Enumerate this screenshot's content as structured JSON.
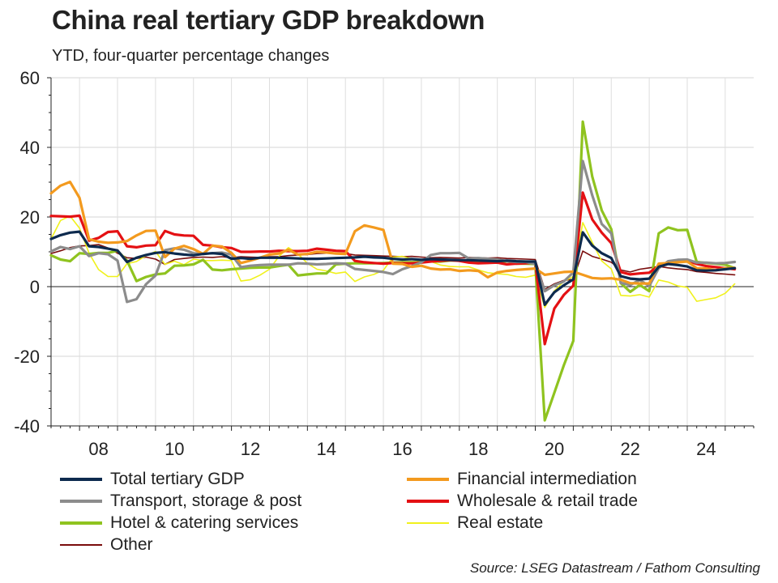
{
  "title": "China real tertiary GDP breakdown",
  "subtitle": "YTD, four-quarter percentage changes",
  "source": "Source: LSEG Datastream / Fathom Consulting",
  "chart_data": {
    "type": "line",
    "title": "China real tertiary GDP breakdown",
    "subtitle": "YTD, four-quarter percentage changes",
    "xlabel": "",
    "ylabel": "",
    "ylim": [
      -40,
      60
    ],
    "yticks": [
      -40,
      -20,
      0,
      20,
      40,
      60
    ],
    "ytick_labels": [
      "-40",
      "-20",
      "0",
      "20",
      "40",
      "60"
    ],
    "xlim": [
      2007.25,
      2025.75
    ],
    "xticks": [
      2008,
      2010,
      2012,
      2014,
      2016,
      2018,
      2020,
      2022,
      2024
    ],
    "xtick_labels": [
      "08",
      "10",
      "12",
      "14",
      "16",
      "18",
      "20",
      "22",
      "24"
    ],
    "grid": true,
    "legend_position": "bottom",
    "x": [
      2007.25,
      2007.5,
      2007.75,
      2008,
      2008.25,
      2008.5,
      2008.75,
      2009,
      2009.25,
      2009.5,
      2009.75,
      2010,
      2010.25,
      2010.5,
      2010.75,
      2011,
      2011.25,
      2011.5,
      2011.75,
      2012,
      2012.25,
      2012.5,
      2012.75,
      2013,
      2013.25,
      2013.5,
      2013.75,
      2014,
      2014.25,
      2014.5,
      2014.75,
      2015,
      2015.25,
      2015.5,
      2015.75,
      2016,
      2016.25,
      2016.5,
      2016.75,
      2017,
      2017.25,
      2017.5,
      2017.75,
      2018,
      2018.25,
      2018.5,
      2018.75,
      2019,
      2019.25,
      2019.5,
      2019.75,
      2020,
      2020.25,
      2020.5,
      2020.75,
      2021,
      2021.25,
      2021.5,
      2021.75,
      2022,
      2022.25,
      2022.5,
      2022.75,
      2023,
      2023.25,
      2023.5,
      2023.75,
      2024,
      2024.25,
      2024.5,
      2024.75,
      2025,
      2025.25
    ],
    "series": [
      {
        "name": "Total tertiary GDP",
        "color": "#0d2a4e",
        "width": 3.2,
        "values": [
          13.7,
          14.8,
          15.5,
          15.8,
          11.6,
          11.4,
          10.9,
          10.4,
          7.1,
          8.3,
          9.1,
          9.7,
          9.9,
          9.5,
          9.2,
          9.0,
          9.4,
          9.6,
          9.4,
          8.0,
          8.2,
          8.0,
          8.3,
          8.3,
          8.3,
          8.2,
          8.1,
          8.0,
          8.0,
          8.1,
          8.2,
          8.3,
          8.4,
          8.6,
          8.4,
          8.3,
          8.0,
          7.8,
          7.9,
          7.7,
          7.9,
          7.8,
          7.7,
          7.6,
          7.6,
          7.5,
          7.4,
          7.3,
          7.5,
          7.3,
          7.2,
          7.2,
          -5.2,
          -1.6,
          0.4,
          2.1,
          15.6,
          11.8,
          9.6,
          8.2,
          3.0,
          2.3,
          2.1,
          2.3,
          5.7,
          6.5,
          6.2,
          5.8,
          4.7,
          4.6,
          4.7,
          5.0,
          5.3
        ]
      },
      {
        "name": "Financial intermediation",
        "color": "#f39a1e",
        "width": 3.2,
        "values": [
          26.8,
          29.0,
          30.1,
          25.5,
          13.6,
          12.9,
          12.6,
          12.7,
          13.1,
          14.7,
          16.0,
          16.1,
          8.5,
          10.9,
          11.7,
          10.8,
          9.4,
          11.8,
          11.5,
          9.7,
          6.8,
          7.5,
          8.3,
          9.2,
          9.5,
          10.6,
          9.2,
          9.4,
          10.0,
          9.8,
          9.5,
          9.4,
          15.9,
          17.6,
          17.0,
          16.3,
          6.6,
          6.5,
          5.7,
          6.0,
          5.2,
          4.9,
          5.0,
          4.5,
          4.7,
          4.5,
          2.7,
          4.1,
          4.5,
          4.8,
          5.0,
          5.2,
          3.4,
          3.8,
          4.2,
          4.3,
          3.4,
          2.5,
          2.3,
          2.4,
          2.0,
          1.0,
          0.9,
          0.9,
          6.6,
          6.8,
          7.0,
          7.2,
          5.3,
          5.2,
          4.7,
          5.3,
          5.4
        ]
      },
      {
        "name": "Transport, storage & post",
        "color": "#8c8c8c",
        "width": 3.2,
        "values": [
          10.1,
          11.4,
          10.8,
          11.6,
          8.8,
          9.6,
          9.3,
          7.5,
          -4.4,
          -3.6,
          0.7,
          3.2,
          10.5,
          11.0,
          10.6,
          9.6,
          9.4,
          9.6,
          9.8,
          9.2,
          5.6,
          6.0,
          6.2,
          6.3,
          6.3,
          6.3,
          6.7,
          6.6,
          6.4,
          6.5,
          6.7,
          6.6,
          5.1,
          4.8,
          4.5,
          4.2,
          3.6,
          5.0,
          5.9,
          7.0,
          9.1,
          9.6,
          9.6,
          9.7,
          8.1,
          8.2,
          8.0,
          7.8,
          7.3,
          7.1,
          7.1,
          6.5,
          -1.3,
          0.4,
          1.5,
          4.1,
          36.1,
          26.2,
          18.0,
          15.3,
          1.1,
          0.5,
          1.9,
          0.2,
          5.3,
          7.3,
          7.7,
          7.8,
          6.9,
          6.9,
          6.7,
          6.8,
          7.1
        ]
      },
      {
        "name": "Wholesale & retail trade",
        "color": "#e41013",
        "width": 3.2,
        "values": [
          20.3,
          20.2,
          20.1,
          20.4,
          13.2,
          14.0,
          15.7,
          15.9,
          11.6,
          11.3,
          11.8,
          11.9,
          16.0,
          15.0,
          14.7,
          14.6,
          12.0,
          11.8,
          11.3,
          11.1,
          10.0,
          10.0,
          10.1,
          10.1,
          10.3,
          10.2,
          10.2,
          10.3,
          10.9,
          10.6,
          10.3,
          10.2,
          7.4,
          7.0,
          6.8,
          6.6,
          6.8,
          6.7,
          6.7,
          6.9,
          7.2,
          7.4,
          7.6,
          7.4,
          6.9,
          6.7,
          6.8,
          6.9,
          6.4,
          6.6,
          6.7,
          6.9,
          -16.5,
          -6.3,
          -2.4,
          0.3,
          27.0,
          19.3,
          15.5,
          12.5,
          4.2,
          3.5,
          3.8,
          4.0,
          6.0,
          6.8,
          7.5,
          7.5,
          6.5,
          5.9,
          5.6,
          5.3,
          5.0
        ]
      },
      {
        "name": "Hotel & catering services",
        "color": "#8fc31f",
        "width": 3.2,
        "values": [
          9.0,
          7.8,
          7.3,
          9.6,
          9.4,
          9.7,
          9.7,
          10.3,
          7.5,
          1.6,
          2.8,
          3.5,
          3.8,
          6.0,
          6.1,
          6.4,
          7.7,
          4.9,
          4.7,
          5.0,
          5.2,
          5.4,
          5.5,
          5.5,
          5.9,
          6.3,
          3.2,
          3.5,
          3.8,
          3.8,
          6.4,
          6.6,
          6.7,
          6.7,
          6.7,
          6.8,
          6.9,
          7.0,
          7.0,
          7.0,
          7.3,
          7.2,
          7.5,
          7.5,
          7.2,
          7.1,
          7.3,
          7.0,
          7.3,
          6.6,
          6.6,
          6.5,
          -38.4,
          -30.5,
          -22.6,
          -15.6,
          47.4,
          31.6,
          21.9,
          16.5,
          1.0,
          -1.5,
          0.5,
          -1.3,
          15.3,
          17.0,
          16.2,
          16.3,
          7.1,
          6.8,
          6.6,
          6.3,
          5.3
        ]
      },
      {
        "name": "Real estate",
        "color": "#f0f11c",
        "width": 1.6,
        "values": [
          13.7,
          19.0,
          20.3,
          16.8,
          9.6,
          4.9,
          2.9,
          2.9,
          6.6,
          7.2,
          8.9,
          10.1,
          6.4,
          7.3,
          6.3,
          7.9,
          7.5,
          7.5,
          7.6,
          7.5,
          1.6,
          2.0,
          3.3,
          5.0,
          8.7,
          11.2,
          9.4,
          6.7,
          5.0,
          4.5,
          3.8,
          4.2,
          1.5,
          2.8,
          3.5,
          4.7,
          8.5,
          8.7,
          8.0,
          7.2,
          7.2,
          6.2,
          5.8,
          5.7,
          5.7,
          4.8,
          4.0,
          3.7,
          3.5,
          2.9,
          2.7,
          3.3,
          -6.0,
          -1.2,
          1.5,
          2.9,
          18.4,
          12.7,
          7.4,
          5.1,
          -2.5,
          -2.7,
          -2.3,
          -3.0,
          1.9,
          1.3,
          0.2,
          -0.2,
          -4.2,
          -3.7,
          -3.2,
          -1.9,
          0.8
        ]
      },
      {
        "name": "Other",
        "color": "#7a0c0c",
        "width": 1.6,
        "values": [
          9.5,
          10.3,
          11.2,
          11.7,
          11.8,
          12.1,
          11.1,
          9.6,
          8.3,
          8.1,
          8.5,
          7.9,
          6.4,
          7.8,
          8.1,
          8.4,
          8.5,
          8.4,
          8.6,
          8.3,
          8.6,
          8.5,
          8.4,
          8.6,
          8.6,
          8.9,
          9.1,
          9.2,
          9.5,
          9.6,
          9.6,
          9.5,
          9.1,
          9.0,
          8.9,
          8.8,
          8.7,
          8.6,
          8.7,
          8.5,
          8.3,
          8.4,
          8.3,
          8.2,
          8.4,
          8.3,
          8.2,
          8.3,
          8.1,
          8.0,
          7.9,
          7.8,
          -0.8,
          0.8,
          1.8,
          2.1,
          10.2,
          8.7,
          7.9,
          7.0,
          4.8,
          4.2,
          5.0,
          5.4,
          5.8,
          5.4,
          5.1,
          4.9,
          4.3,
          4.1,
          3.8,
          3.6,
          3.4
        ]
      }
    ]
  }
}
